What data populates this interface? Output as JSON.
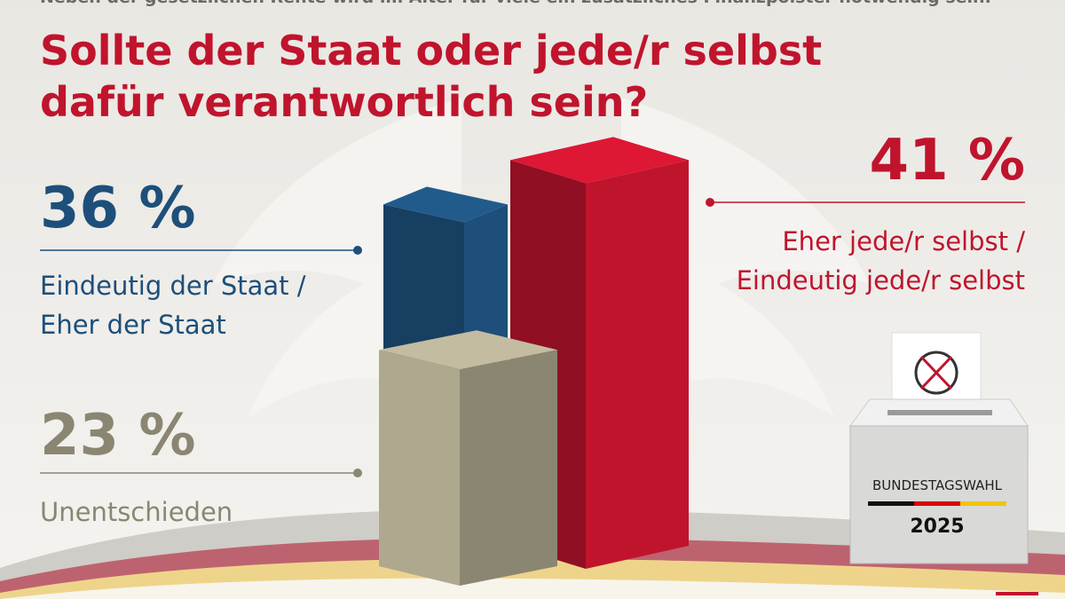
{
  "chart_data": {
    "type": "bar3d",
    "subtitle": "Neben der gesetzlichen Rente wird im Alter für viele ein zusätzliches Finanzpolster notwendig sein.",
    "title": "Sollte der Staat oder jede/r selbst dafür verantwortlich sein?",
    "categories": [
      "Eindeutig der Staat / Eher der Staat",
      "Eher jede/r selbst / Eindeutig jede/r selbst",
      "Unentschieden"
    ],
    "values": [
      36,
      41,
      23
    ],
    "value_labels": [
      "36 %",
      "41 %",
      "23 %"
    ],
    "colors": [
      "#1d4f7a",
      "#c0142d",
      "#8b8672"
    ]
  },
  "ballot_box": {
    "label": "BUNDESTAGSWAHL",
    "year": "2025"
  }
}
